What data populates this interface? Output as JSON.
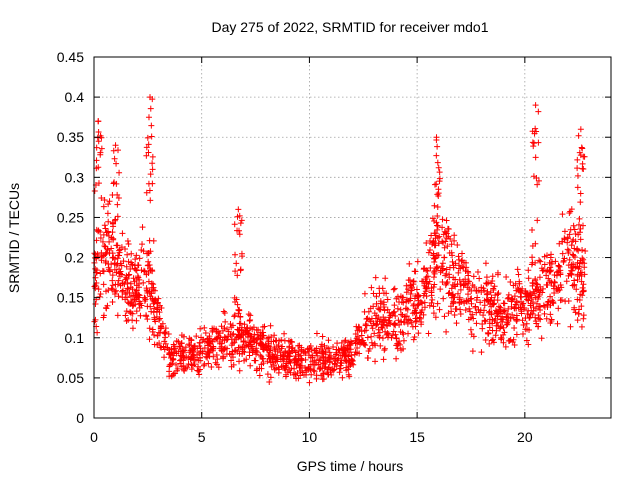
{
  "chart_data": {
    "type": "scatter",
    "title": "Day 275 of 2022, SRMTID for receiver mdo1",
    "xlabel": "GPS time / hours",
    "ylabel": "SRMTID / TECUs",
    "xlim": [
      0,
      24
    ],
    "ylim": [
      0,
      0.45
    ],
    "xticks": [
      0,
      5,
      10,
      15,
      20
    ],
    "xtick_labels": [
      "0",
      "5",
      "10",
      "15",
      "20"
    ],
    "yticks": [
      0,
      0.05,
      0.1,
      0.15,
      0.2,
      0.25,
      0.3,
      0.35,
      0.4,
      0.45
    ],
    "ytick_labels": [
      "0",
      "0.05",
      "0.1",
      "0.15",
      "0.2",
      "0.25",
      "0.3",
      "0.35",
      "0.4",
      "0.45"
    ],
    "grid": true,
    "marker": "plus",
    "color": "#ff0000",
    "x_range_of_data": [
      0,
      22.8
    ],
    "trend": {
      "x": [
        0,
        0.5,
        1,
        1.5,
        2,
        2.5,
        3,
        3.5,
        4,
        5,
        6,
        7,
        8,
        9,
        10,
        11,
        12,
        13,
        14,
        15,
        16,
        17,
        18,
        19,
        20,
        21,
        22,
        22.8
      ],
      "y": [
        0.15,
        0.21,
        0.19,
        0.17,
        0.16,
        0.17,
        0.12,
        0.08,
        0.075,
        0.085,
        0.095,
        0.1,
        0.085,
        0.075,
        0.075,
        0.07,
        0.08,
        0.13,
        0.12,
        0.14,
        0.2,
        0.16,
        0.14,
        0.13,
        0.14,
        0.16,
        0.2,
        0.17
      ]
    },
    "peaks": [
      {
        "x": 0.2,
        "y": 0.37
      },
      {
        "x": 1.0,
        "y": 0.34
      },
      {
        "x": 2.6,
        "y": 0.4
      },
      {
        "x": 6.7,
        "y": 0.26
      },
      {
        "x": 15.9,
        "y": 0.35
      },
      {
        "x": 20.5,
        "y": 0.39
      },
      {
        "x": 22.6,
        "y": 0.36
      }
    ]
  }
}
